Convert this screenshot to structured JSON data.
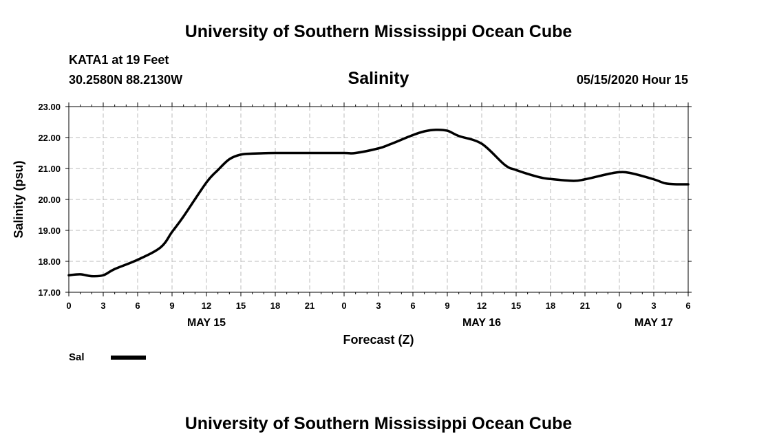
{
  "header": {
    "title": "University of Southern Mississippi Ocean Cube",
    "station": "KATA1 at 19 Feet",
    "coords": "30.2580N 88.2130W",
    "variable": "Salinity",
    "timestamp": "05/15/2020 Hour 15"
  },
  "footer": {
    "title": "University of Southern Mississippi Ocean Cube"
  },
  "colors": {
    "line": "#000000",
    "grid": "#bbbbbb"
  },
  "chart_data": {
    "type": "line",
    "title": "Salinity",
    "xlabel": "Forecast (Z)",
    "ylabel": "Salinity (psu)",
    "x_start": "2020-05-15T00:00Z",
    "x_end": "2020-05-17T06:00Z",
    "x_tick_labels": [
      "0",
      "3",
      "6",
      "9",
      "12",
      "15",
      "18",
      "21",
      "0",
      "3",
      "6",
      "9",
      "12",
      "15",
      "18",
      "21",
      "0",
      "3",
      "6"
    ],
    "date_labels": [
      {
        "label": "MAY 15",
        "at": "2020-05-15T12:00Z"
      },
      {
        "label": "MAY 16",
        "at": "2020-05-16T12:00Z"
      },
      {
        "label": "MAY 17",
        "at": "2020-05-17T03:00Z"
      }
    ],
    "ylim": [
      17.0,
      23.0
    ],
    "y_tick_labels": [
      "17.00",
      "18.00",
      "19.00",
      "20.00",
      "21.00",
      "22.00",
      "23.00"
    ],
    "grid": true,
    "legend_position": "bottom-left",
    "series": [
      {
        "name": "Sal",
        "x": [
          "2020-05-15T00:00Z",
          "2020-05-15T01:00Z",
          "2020-05-15T02:00Z",
          "2020-05-15T03:00Z",
          "2020-05-15T04:00Z",
          "2020-05-15T06:00Z",
          "2020-05-15T08:00Z",
          "2020-05-15T09:00Z",
          "2020-05-15T10:00Z",
          "2020-05-15T12:00Z",
          "2020-05-15T13:00Z",
          "2020-05-15T14:00Z",
          "2020-05-15T15:00Z",
          "2020-05-15T16:00Z",
          "2020-05-15T18:00Z",
          "2020-05-15T21:00Z",
          "2020-05-16T00:00Z",
          "2020-05-16T01:00Z",
          "2020-05-16T03:00Z",
          "2020-05-16T04:00Z",
          "2020-05-16T06:00Z",
          "2020-05-16T07:00Z",
          "2020-05-16T08:00Z",
          "2020-05-16T09:00Z",
          "2020-05-16T10:00Z",
          "2020-05-16T12:00Z",
          "2020-05-16T14:00Z",
          "2020-05-16T15:00Z",
          "2020-05-16T17:00Z",
          "2020-05-16T18:00Z",
          "2020-05-16T20:00Z",
          "2020-05-16T21:00Z",
          "2020-05-16T23:00Z",
          "2020-05-17T00:00Z",
          "2020-05-17T01:00Z",
          "2020-05-17T03:00Z",
          "2020-05-17T04:00Z",
          "2020-05-17T05:00Z",
          "2020-05-17T06:00Z"
        ],
        "values": [
          17.55,
          17.58,
          17.52,
          17.55,
          17.75,
          18.05,
          18.45,
          18.95,
          19.45,
          20.55,
          20.95,
          21.3,
          21.45,
          21.48,
          21.5,
          21.5,
          21.5,
          21.5,
          21.65,
          21.78,
          22.08,
          22.2,
          22.25,
          22.22,
          22.05,
          21.8,
          21.12,
          20.95,
          20.72,
          20.66,
          20.6,
          20.65,
          20.82,
          20.88,
          20.85,
          20.65,
          20.52,
          20.49,
          20.49
        ]
      }
    ]
  }
}
